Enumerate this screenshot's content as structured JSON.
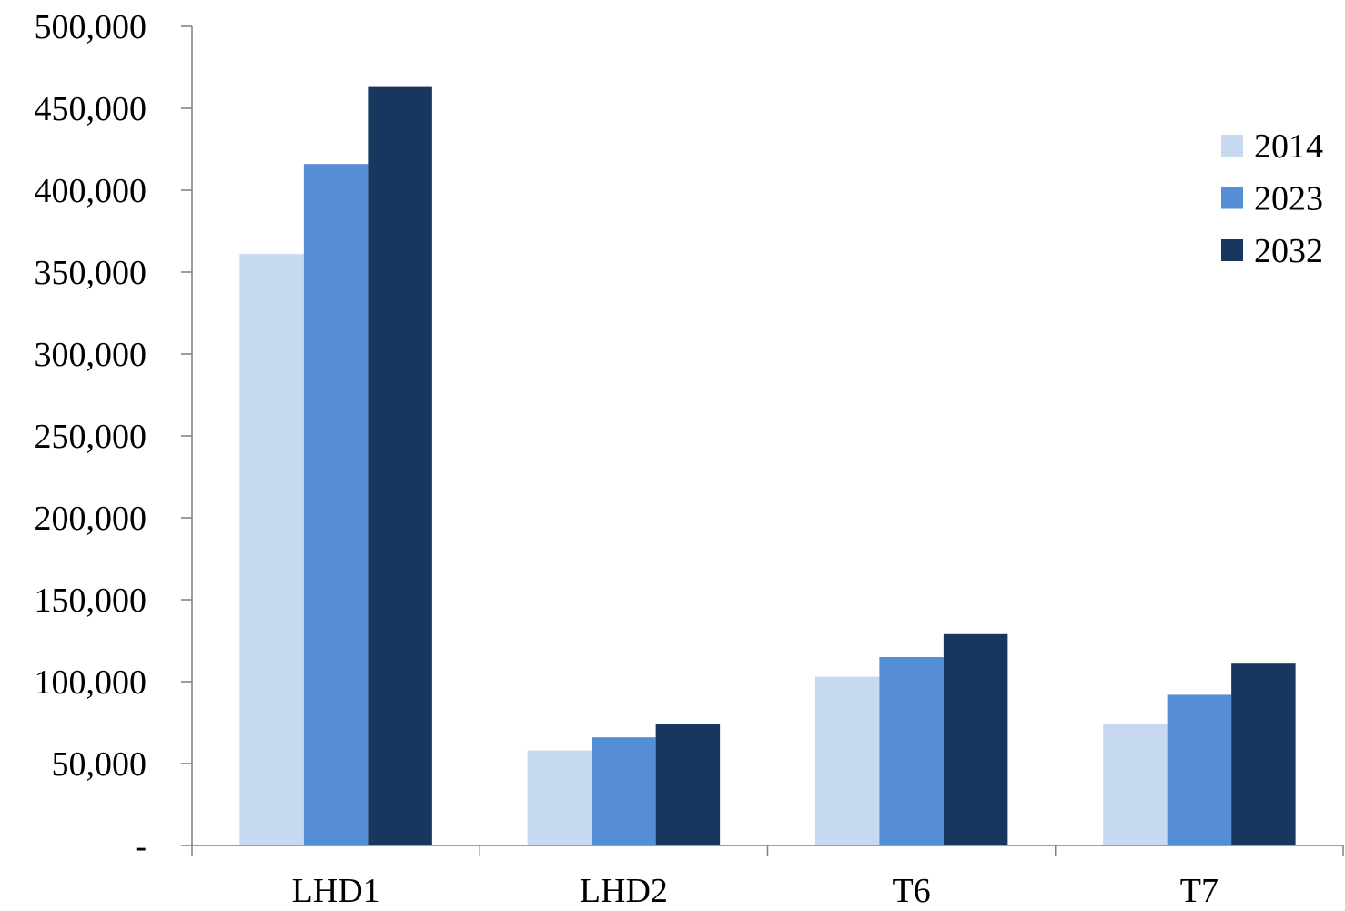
{
  "chart_data": {
    "type": "bar",
    "title": "",
    "xlabel": "",
    "ylabel": "",
    "categories": [
      "LHD1",
      "LHD2",
      "T6",
      "T7"
    ],
    "series": [
      {
        "name": "2014",
        "color": "#c6d9f1",
        "values": [
          361000,
          58000,
          103000,
          74000
        ]
      },
      {
        "name": "2023",
        "color": "#558ed5",
        "values": [
          416000,
          66000,
          115000,
          92000
        ]
      },
      {
        "name": "2032",
        "color": "#17375e",
        "values": [
          463000,
          74000,
          129000,
          111000
        ]
      }
    ],
    "ylim": [
      0,
      500000
    ],
    "yticks": [
      0,
      50000,
      100000,
      150000,
      200000,
      250000,
      300000,
      350000,
      400000,
      450000,
      500000
    ],
    "ytick_labels": [
      "-",
      "50,000",
      "100,000",
      "150,000",
      "200,000",
      "250,000",
      "300,000",
      "350,000",
      "400,000",
      "450,000",
      "500,000"
    ],
    "grid": false,
    "legend_position": "right"
  }
}
